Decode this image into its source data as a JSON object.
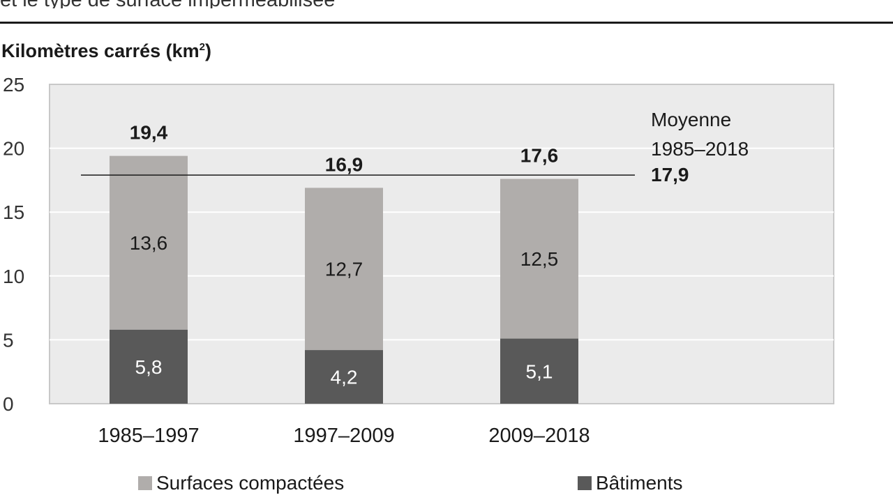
{
  "header": {
    "subtitle": "et le type de surface imperméabilisée",
    "unit_label": "Kilomètres carrés (km",
    "unit_sup": "2",
    "unit_close": ")"
  },
  "chart_data": {
    "type": "bar",
    "stacked": true,
    "categories": [
      "1985–1997",
      "1997–2009",
      "2009–2018"
    ],
    "series": [
      {
        "name": "Bâtiments",
        "values": [
          5.8,
          4.2,
          5.1
        ],
        "labels": [
          "5,8",
          "4,2",
          "5,1"
        ],
        "color": "#595959"
      },
      {
        "name": "Surfaces compactées",
        "values": [
          13.6,
          12.7,
          12.5
        ],
        "labels": [
          "13,6",
          "12,7",
          "12,5"
        ],
        "color": "#b0adab"
      }
    ],
    "totals": [
      19.4,
      16.9,
      17.6
    ],
    "total_labels": [
      "19,4",
      "16,9",
      "17,6"
    ],
    "ylim": [
      0,
      25
    ],
    "yticks": [
      0,
      5,
      10,
      15,
      20,
      25
    ],
    "ytick_labels": [
      "0",
      "5",
      "10",
      "15",
      "20",
      "25"
    ],
    "grid": true,
    "plot_background": "#ebebeb",
    "reference_line": {
      "value": 17.9,
      "label_line1": "Moyenne",
      "label_line2": "1985–2018",
      "value_label": "17,9"
    }
  }
}
